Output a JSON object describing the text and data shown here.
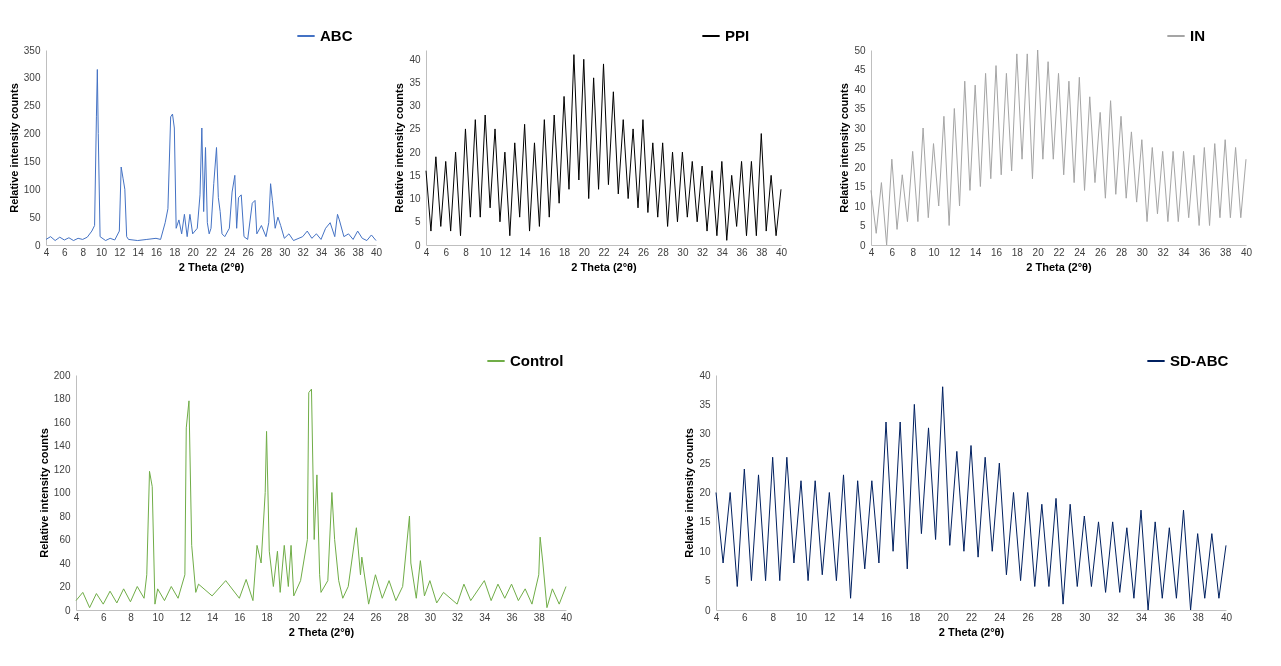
{
  "chart_data": [
    {
      "type": "line",
      "xlabel": "2 Theta (2°θ)",
      "ylabel": "Relative intensity counts",
      "legend": "top right",
      "xlim": [
        4,
        40
      ],
      "xticks": [
        4,
        6,
        8,
        10,
        12,
        14,
        16,
        18,
        20,
        22,
        24,
        26,
        28,
        30,
        32,
        34,
        36,
        38,
        40
      ],
      "ylim": [
        0,
        350
      ],
      "yticks": [
        0,
        50,
        100,
        150,
        200,
        250,
        300,
        350
      ],
      "x": [
        4,
        4.5,
        5,
        5.5,
        6,
        6.5,
        7,
        7.5,
        8,
        8.5,
        9,
        9.3,
        9.5,
        9.6,
        9.7,
        9.9,
        10.5,
        11,
        11.5,
        12,
        12.2,
        12.4,
        12.6,
        12.8,
        13,
        14,
        15,
        16,
        16.5,
        17,
        17.3,
        17.6,
        17.8,
        18,
        18.2,
        18.5,
        18.8,
        19.1,
        19.4,
        19.7,
        20,
        20.5,
        20.8,
        21,
        21.2,
        21.4,
        21.6,
        21.8,
        22,
        22.3,
        22.6,
        22.8,
        23,
        23.2,
        23.5,
        24,
        24.3,
        24.6,
        24.8,
        25,
        25.3,
        25.6,
        26,
        26.5,
        26.8,
        27,
        27.5,
        28,
        28.3,
        28.5,
        28.7,
        29,
        29.3,
        29.6,
        30,
        30.5,
        31,
        32,
        32.5,
        33,
        33.5,
        34,
        34.5,
        35,
        35.5,
        35.8,
        36,
        36.5,
        37,
        37.5,
        38,
        38.5,
        39,
        39.5,
        40
      ],
      "series": [
        {
          "name": "ABC",
          "color": "#4472c4",
          "values": [
            10,
            15,
            8,
            14,
            9,
            13,
            8,
            12,
            10,
            14,
            25,
            35,
            230,
            315,
            200,
            15,
            8,
            12,
            9,
            25,
            140,
            120,
            100,
            15,
            10,
            8,
            10,
            12,
            10,
            40,
            65,
            230,
            235,
            210,
            30,
            45,
            20,
            55,
            15,
            55,
            20,
            30,
            90,
            210,
            60,
            175,
            40,
            20,
            30,
            110,
            175,
            85,
            60,
            20,
            15,
            30,
            95,
            125,
            30,
            85,
            90,
            15,
            10,
            75,
            80,
            20,
            35,
            15,
            40,
            110,
            80,
            30,
            50,
            35,
            12,
            20,
            8,
            15,
            25,
            12,
            20,
            10,
            30,
            40,
            15,
            55,
            45,
            15,
            20,
            10,
            25,
            12,
            8,
            18,
            8
          ]
        }
      ]
    },
    {
      "type": "line",
      "xlabel": "2 Theta (2°θ)",
      "ylabel": "Relative intensity counts",
      "legend": "top right",
      "xlim": [
        4,
        40
      ],
      "xticks": [
        4,
        6,
        8,
        10,
        12,
        14,
        16,
        18,
        20,
        22,
        24,
        26,
        28,
        30,
        32,
        34,
        36,
        38,
        40
      ],
      "ylim": [
        0,
        42
      ],
      "yticks": [
        0,
        5,
        10,
        15,
        20,
        25,
        30,
        35,
        40
      ],
      "x": [
        4,
        4.5,
        5,
        5.5,
        6,
        6.5,
        7,
        7.5,
        8,
        8.5,
        9,
        9.5,
        10,
        10.5,
        11,
        11.5,
        12,
        12.5,
        13,
        13.5,
        14,
        14.5,
        15,
        15.5,
        16,
        16.5,
        17,
        17.5,
        18,
        18.5,
        19,
        19.5,
        20,
        20.5,
        21,
        21.5,
        22,
        22.5,
        23,
        23.5,
        24,
        24.5,
        25,
        25.5,
        26,
        26.5,
        27,
        27.5,
        28,
        28.5,
        29,
        29.5,
        30,
        30.5,
        31,
        31.5,
        32,
        32.5,
        33,
        33.5,
        34,
        34.5,
        35,
        35.5,
        36,
        36.5,
        37,
        37.5,
        38,
        38.5,
        39,
        39.5,
        40
      ],
      "series": [
        {
          "name": "PPI",
          "color": "#000000",
          "values": [
            16,
            3,
            19,
            4,
            18,
            3,
            20,
            2,
            25,
            6,
            27,
            6,
            28,
            8,
            25,
            5,
            20,
            2,
            22,
            6,
            26,
            3,
            22,
            4,
            27,
            6,
            28,
            9,
            32,
            12,
            41,
            14,
            40,
            10,
            36,
            12,
            39,
            13,
            33,
            11,
            27,
            10,
            25,
            8,
            27,
            7,
            22,
            6,
            22,
            4,
            20,
            5,
            20,
            6,
            18,
            5,
            17,
            3,
            16,
            2,
            18,
            1,
            15,
            4,
            18,
            2,
            18,
            2,
            24,
            3,
            15,
            2,
            12
          ]
        }
      ]
    },
    {
      "type": "line",
      "xlabel": "2 Theta (2°θ)",
      "ylabel": "Relative intensity counts",
      "legend": "top right",
      "xlim": [
        4,
        40
      ],
      "xticks": [
        4,
        6,
        8,
        10,
        12,
        14,
        16,
        18,
        20,
        22,
        24,
        26,
        28,
        30,
        32,
        34,
        36,
        38,
        40
      ],
      "ylim": [
        0,
        50
      ],
      "yticks": [
        0,
        5,
        10,
        15,
        20,
        25,
        30,
        35,
        40,
        45,
        50
      ],
      "x": [
        4,
        4.5,
        5,
        5.5,
        6,
        6.5,
        7,
        7.5,
        8,
        8.5,
        9,
        9.5,
        10,
        10.5,
        11,
        11.5,
        12,
        12.5,
        13,
        13.5,
        14,
        14.5,
        15,
        15.5,
        16,
        16.5,
        17,
        17.5,
        18,
        18.5,
        19,
        19.5,
        20,
        20.5,
        21,
        21.5,
        22,
        22.5,
        23,
        23.5,
        24,
        24.5,
        25,
        25.5,
        26,
        26.5,
        27,
        27.5,
        28,
        28.5,
        29,
        29.5,
        30,
        30.5,
        31,
        31.5,
        32,
        32.5,
        33,
        33.5,
        34,
        34.5,
        35,
        35.5,
        36,
        36.5,
        37,
        37.5,
        38,
        38.5,
        39,
        39.5,
        40
      ],
      "series": [
        {
          "name": "IN",
          "color": "#a5a5a5",
          "values": [
            14,
            3,
            16,
            0,
            22,
            4,
            18,
            6,
            24,
            6,
            30,
            7,
            26,
            10,
            33,
            5,
            35,
            10,
            42,
            14,
            41,
            15,
            44,
            17,
            46,
            18,
            44,
            19,
            49,
            22,
            49,
            17,
            50,
            22,
            47,
            22,
            44,
            18,
            42,
            16,
            43,
            14,
            38,
            16,
            34,
            12,
            37,
            13,
            33,
            12,
            29,
            11,
            27,
            6,
            25,
            8,
            24,
            6,
            24,
            6,
            24,
            7,
            23,
            5,
            25,
            5,
            26,
            7,
            27,
            7,
            25,
            7,
            22
          ]
        }
      ]
    },
    {
      "type": "line",
      "xlabel": "2 Theta (2°θ)",
      "ylabel": "Relative intensity counts",
      "legend": "top right",
      "xlim": [
        4,
        40
      ],
      "xticks": [
        4,
        6,
        8,
        10,
        12,
        14,
        16,
        18,
        20,
        22,
        24,
        26,
        28,
        30,
        32,
        34,
        36,
        38,
        40
      ],
      "ylim": [
        0,
        200
      ],
      "yticks": [
        0,
        20,
        40,
        60,
        80,
        100,
        120,
        140,
        160,
        180,
        200
      ],
      "x": [
        4,
        4.5,
        5,
        5.5,
        6,
        6.5,
        7,
        7.5,
        8,
        8.5,
        9,
        9.2,
        9.4,
        9.6,
        9.8,
        10,
        10.5,
        11,
        11.5,
        12,
        12.1,
        12.3,
        12.5,
        12.8,
        13,
        14,
        15,
        16,
        16.5,
        17,
        17.3,
        17.6,
        17.9,
        18,
        18.2,
        18.5,
        18.8,
        19,
        19.3,
        19.6,
        19.8,
        20,
        20.5,
        21,
        21.1,
        21.3,
        21.5,
        21.7,
        21.9,
        22,
        22.5,
        22.8,
        23,
        23.3,
        23.6,
        24,
        24.6,
        24.9,
        25,
        25.5,
        26,
        26.5,
        27,
        27.5,
        28,
        28.5,
        28.6,
        29,
        29.3,
        29.6,
        30,
        30.5,
        31,
        32,
        32.5,
        33,
        34,
        34.5,
        35,
        35.5,
        36,
        36.5,
        37,
        37.5,
        38,
        38.1,
        38.3,
        38.6,
        39,
        39.5,
        40
      ],
      "series": [
        {
          "name": "Control",
          "color": "#70ad47",
          "values": [
            8,
            15,
            2,
            14,
            5,
            16,
            6,
            18,
            7,
            20,
            10,
            30,
            118,
            105,
            5,
            18,
            8,
            20,
            10,
            30,
            155,
            178,
            55,
            15,
            22,
            12,
            25,
            10,
            26,
            8,
            55,
            40,
            100,
            152,
            50,
            20,
            50,
            15,
            55,
            20,
            55,
            12,
            25,
            60,
            185,
            188,
            60,
            115,
            30,
            15,
            25,
            100,
            60,
            25,
            10,
            20,
            70,
            30,
            45,
            5,
            30,
            10,
            25,
            8,
            20,
            80,
            40,
            10,
            42,
            12,
            25,
            6,
            15,
            5,
            22,
            8,
            25,
            8,
            22,
            10,
            22,
            8,
            18,
            5,
            30,
            62,
            40,
            2,
            18,
            5,
            20
          ]
        }
      ]
    },
    {
      "type": "line",
      "xlabel": "2 Theta (2°θ)",
      "ylabel": "Relative intensity counts",
      "legend": "top right",
      "xlim": [
        4,
        40
      ],
      "xticks": [
        4,
        6,
        8,
        10,
        12,
        14,
        16,
        18,
        20,
        22,
        24,
        26,
        28,
        30,
        32,
        34,
        36,
        38,
        40
      ],
      "ylim": [
        0,
        40
      ],
      "yticks": [
        0,
        5,
        10,
        15,
        20,
        25,
        30,
        35,
        40
      ],
      "x": [
        4,
        4.5,
        5,
        5.5,
        6,
        6.5,
        7,
        7.5,
        8,
        8.5,
        9,
        9.5,
        10,
        10.5,
        11,
        11.5,
        12,
        12.5,
        13,
        13.5,
        14,
        14.5,
        15,
        15.5,
        16,
        16.5,
        17,
        17.5,
        18,
        18.5,
        19,
        19.5,
        20,
        20.5,
        21,
        21.5,
        22,
        22.5,
        23,
        23.5,
        24,
        24.5,
        25,
        25.5,
        26,
        26.5,
        27,
        27.5,
        28,
        28.5,
        29,
        29.5,
        30,
        30.5,
        31,
        31.5,
        32,
        32.5,
        33,
        33.5,
        34,
        34.5,
        35,
        35.5,
        36,
        36.5,
        37,
        37.5,
        38,
        38.5,
        39,
        39.5,
        40
      ],
      "series": [
        {
          "name": "SD-ABC",
          "color": "#002060",
          "values": [
            20,
            8,
            20,
            4,
            24,
            5,
            23,
            5,
            26,
            5,
            26,
            8,
            22,
            5,
            22,
            6,
            20,
            5,
            23,
            2,
            22,
            7,
            22,
            8,
            32,
            10,
            32,
            7,
            35,
            13,
            31,
            12,
            38,
            11,
            27,
            10,
            28,
            9,
            26,
            10,
            25,
            6,
            20,
            5,
            20,
            4,
            18,
            4,
            19,
            1,
            18,
            4,
            16,
            4,
            15,
            3,
            15,
            3,
            14,
            2,
            17,
            0,
            15,
            2,
            14,
            2,
            17,
            0,
            13,
            2,
            13,
            2,
            11
          ]
        }
      ]
    }
  ]
}
